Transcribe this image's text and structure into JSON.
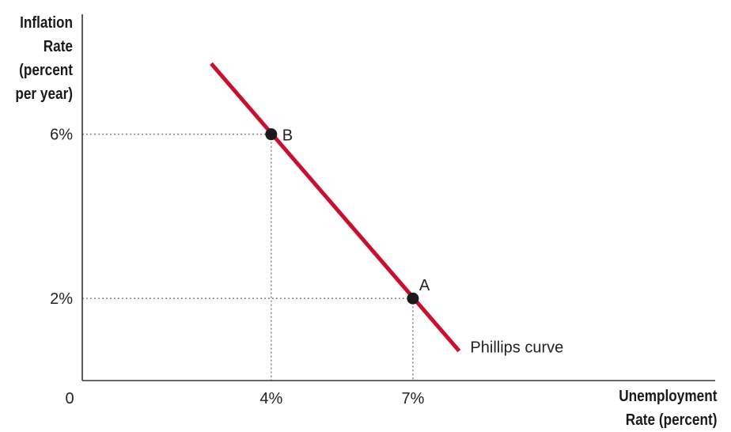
{
  "chart_data": {
    "type": "line",
    "ylabel_lines": [
      "Inflation",
      "Rate",
      "(percent",
      "per year)"
    ],
    "xlabel_lines": [
      "Unemployment",
      "Rate (percent)"
    ],
    "origin_label": "0",
    "x_ticks": [
      {
        "value": 4,
        "label": "4%"
      },
      {
        "value": 7,
        "label": "7%"
      }
    ],
    "y_ticks": [
      {
        "value": 2,
        "label": "2%"
      },
      {
        "value": 6,
        "label": "6%"
      }
    ],
    "xlim": [
      0,
      13.4
    ],
    "ylim": [
      0,
      9
    ],
    "series": [
      {
        "name": "Phillips curve",
        "color": "#c8102e",
        "x": [
          2.73,
          7.98
        ],
        "y": [
          7.72,
          0.72
        ]
      }
    ],
    "points": [
      {
        "label": "B",
        "x": 4,
        "y": 6
      },
      {
        "label": "A",
        "x": 7,
        "y": 2
      }
    ],
    "guide_lines": "dotted",
    "grid": false
  }
}
